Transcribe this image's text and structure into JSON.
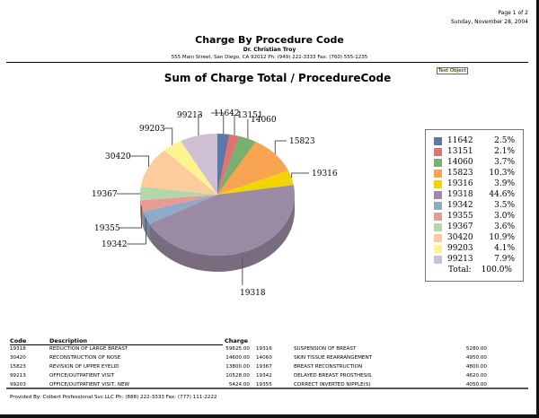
{
  "header": {
    "page": "Page 1 of 2",
    "date": "Sunday, November 28, 2004",
    "title": "Charge By Procedure Code",
    "doctor": "Dr. Christian Troy",
    "address": "555 Main Street, San Diego, CA 92012 Ph: (949) 222-3333 Fax: (760) 555-1235",
    "text_object": "Text Object"
  },
  "chart_data": {
    "type": "pie",
    "style": "3d",
    "title": "Sum of Charge Total / ProcedureCode",
    "legend_placement": "right",
    "slices": [
      {
        "label": "11642",
        "percent": 2.5,
        "pct_text": "2.5%",
        "color": "#5b78a8"
      },
      {
        "label": "13151",
        "percent": 2.1,
        "pct_text": "2.1%",
        "color": "#e07373"
      },
      {
        "label": "14060",
        "percent": 3.7,
        "pct_text": "3.7%",
        "color": "#79b06f"
      },
      {
        "label": "15823",
        "percent": 10.3,
        "pct_text": "10.3%",
        "color": "#f9a450"
      },
      {
        "label": "19316",
        "percent": 3.9,
        "pct_text": "3.9%",
        "color": "#f2d500"
      },
      {
        "label": "19318",
        "percent": 44.6,
        "pct_text": "44.6%",
        "color": "#9b8aa3"
      },
      {
        "label": "19342",
        "percent": 3.5,
        "pct_text": "3.5%",
        "color": "#8fa9c8"
      },
      {
        "label": "19355",
        "percent": 3.0,
        "pct_text": "3.0%",
        "color": "#e99b93"
      },
      {
        "label": "19367",
        "percent": 3.6,
        "pct_text": "3.6%",
        "color": "#b5d6ad"
      },
      {
        "label": "30420",
        "percent": 10.9,
        "pct_text": "10.9%",
        "color": "#fdcc9c"
      },
      {
        "label": "99203",
        "percent": 4.1,
        "pct_text": "4.1%",
        "color": "#fdf48f"
      },
      {
        "label": "99213",
        "percent": 7.9,
        "pct_text": "7.9%",
        "color": "#cfbfd3"
      }
    ],
    "total_label": "Total:",
    "total_value": "100.0%"
  },
  "table": {
    "headers": {
      "code": "Code",
      "description": "Description",
      "charge": "Charge"
    },
    "rows": [
      {
        "code": "19318",
        "description": "REDUCTION OF LARGE BREAST",
        "charge": "59625.00",
        "code2": "19316",
        "description2": "SUSPENSION OF BREAST",
        "charge2": "5280.00"
      },
      {
        "code": "30420",
        "description": "RECONSTRUCTION OF NOSE",
        "charge": "14600.00",
        "code2": "14060",
        "description2": "SKIN TISSUE REARRANGEMENT",
        "charge2": "4950.00"
      },
      {
        "code": "15823",
        "description": "REVISION OF UPPER EYELID",
        "charge": "13800.00",
        "code2": "19367",
        "description2": "BREAST RECONSTRUCTION",
        "charge2": "4800.00"
      },
      {
        "code": "99213",
        "description": "OFFICE/OUTPATIENT VISIT",
        "charge": "10528.00",
        "code2": "19342",
        "description2": "DELAYED BREAST PROSTHESIS",
        "charge2": "4620.00"
      },
      {
        "code": "99203",
        "description": "OFFICE/OUTPATIENT VISIT, NEW",
        "charge": "5424.00",
        "code2": "19355",
        "description2": "CORRECT INVERTED NIPPLE(S)",
        "charge2": "4050.00"
      }
    ]
  },
  "footer": "Provided By: Colbert Professional Svc LLC Ph: (888) 222-3333 Fax: (777) 111-2222"
}
